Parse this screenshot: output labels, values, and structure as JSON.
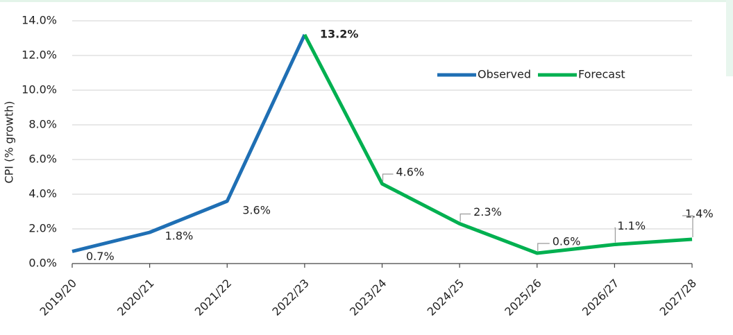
{
  "chart_data": {
    "type": "line",
    "y_label": "CPI (% growth)",
    "categories": [
      "2019/20",
      "2020/21",
      "2021/22",
      "2022/23",
      "2023/24",
      "2024/25",
      "2025/26",
      "2026/27",
      "2027/28"
    ],
    "series": [
      {
        "name": "Observed",
        "color": "#1f6fb4",
        "values": [
          0.7,
          1.8,
          3.6,
          13.2,
          null,
          null,
          null,
          null,
          null
        ],
        "value_labels": [
          "0.7%",
          "1.8%",
          "3.6%",
          "13.2%",
          null,
          null,
          null,
          null,
          null
        ]
      },
      {
        "name": "Forecast",
        "color": "#00b050",
        "values": [
          null,
          null,
          null,
          13.2,
          4.6,
          2.3,
          0.6,
          1.1,
          1.4
        ],
        "value_labels": [
          null,
          null,
          null,
          null,
          "4.6%",
          "2.3%",
          "0.6%",
          "1.1%",
          "1.4%"
        ]
      }
    ],
    "ylim": [
      0,
      14
    ],
    "yticks": [
      {
        "value": 0,
        "label": "0.0%"
      },
      {
        "value": 2,
        "label": "2.0%"
      },
      {
        "value": 4,
        "label": "4.0%"
      },
      {
        "value": 6,
        "label": "6.0%"
      },
      {
        "value": 8,
        "label": "8.0%"
      },
      {
        "value": 10,
        "label": "10.0%"
      },
      {
        "value": 12,
        "label": "12.0%"
      },
      {
        "value": 14,
        "label": "14.0%"
      }
    ],
    "grid": true,
    "legend": "top-right"
  }
}
